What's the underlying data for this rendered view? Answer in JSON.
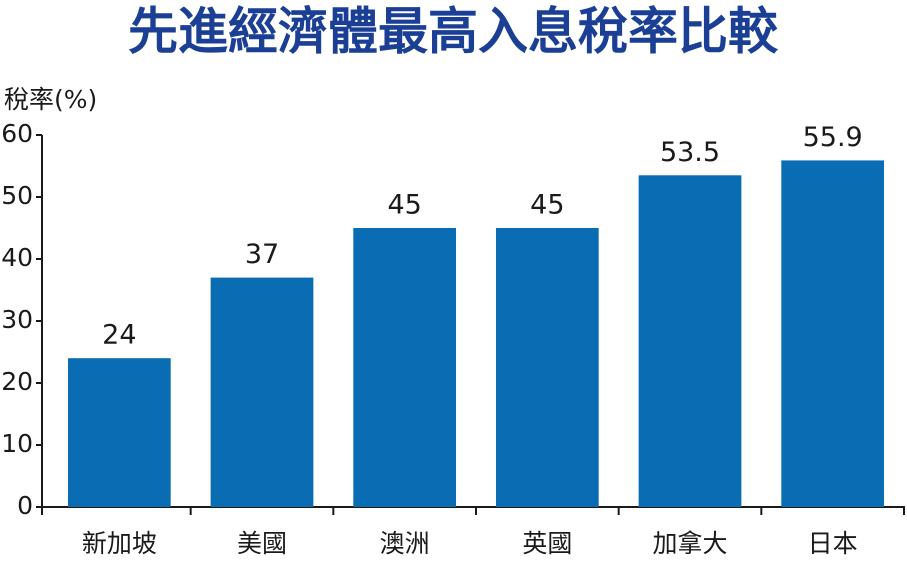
{
  "chart_data": {
    "type": "bar",
    "title": "先進經濟體最高入息稅率比較",
    "y_label": "稅率(%)",
    "categories": [
      "新加坡",
      "美國",
      "澳洲",
      "英國",
      "加拿大",
      "日本"
    ],
    "values": [
      24,
      37,
      45,
      45,
      53.5,
      55.9
    ],
    "color": "#0a6db3",
    "ylim": [
      0,
      60
    ],
    "yticks": [
      0,
      10,
      20,
      30,
      40,
      50,
      60
    ],
    "grid": false
  }
}
